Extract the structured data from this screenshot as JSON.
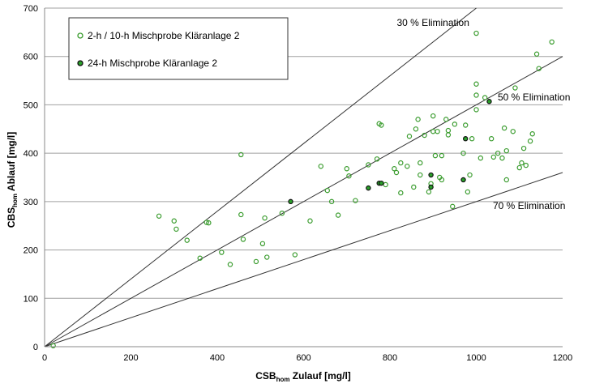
{
  "chart_data": {
    "type": "scatter",
    "xlabel": {
      "main": "CSB",
      "sub": "hom",
      "rest": " Zulauf [mg/l]"
    },
    "ylabel": {
      "main": "CBS",
      "sub": "hom",
      "rest": " Ablauf [mg/l]"
    },
    "xlim": [
      0,
      1200
    ],
    "ylim": [
      0,
      700
    ],
    "xticks": [
      "0",
      "200",
      "400",
      "600",
      "800",
      "1000",
      "1200"
    ],
    "yticks": [
      "0",
      "100",
      "200",
      "300",
      "400",
      "500",
      "600",
      "700"
    ],
    "grid": "horizontal",
    "legend_position": "top-left",
    "series": [
      {
        "name": "2-h / 10-h Mischprobe Kläranlage 2",
        "marker": "open-circle",
        "color": "#3a9c2e",
        "points": [
          [
            20,
            2
          ],
          [
            265,
            270
          ],
          [
            300,
            260
          ],
          [
            305,
            243
          ],
          [
            330,
            220
          ],
          [
            360,
            183
          ],
          [
            375,
            257
          ],
          [
            380,
            256
          ],
          [
            410,
            195
          ],
          [
            430,
            170
          ],
          [
            455,
            397
          ],
          [
            455,
            273
          ],
          [
            460,
            222
          ],
          [
            490,
            176
          ],
          [
            505,
            213
          ],
          [
            510,
            266
          ],
          [
            515,
            185
          ],
          [
            550,
            276
          ],
          [
            580,
            190
          ],
          [
            615,
            260
          ],
          [
            640,
            373
          ],
          [
            655,
            323
          ],
          [
            665,
            300
          ],
          [
            680,
            272
          ],
          [
            700,
            368
          ],
          [
            705,
            353
          ],
          [
            720,
            302
          ],
          [
            750,
            376
          ],
          [
            770,
            388
          ],
          [
            775,
            461
          ],
          [
            780,
            458
          ],
          [
            790,
            335
          ],
          [
            810,
            368
          ],
          [
            815,
            360
          ],
          [
            825,
            318
          ],
          [
            825,
            380
          ],
          [
            840,
            373
          ],
          [
            845,
            435
          ],
          [
            855,
            330
          ],
          [
            860,
            450
          ],
          [
            865,
            470
          ],
          [
            870,
            380
          ],
          [
            870,
            355
          ],
          [
            880,
            437
          ],
          [
            890,
            320
          ],
          [
            895,
            337
          ],
          [
            900,
            477
          ],
          [
            900,
            445
          ],
          [
            905,
            395
          ],
          [
            910,
            445
          ],
          [
            915,
            350
          ],
          [
            920,
            395
          ],
          [
            920,
            345
          ],
          [
            930,
            470
          ],
          [
            935,
            447
          ],
          [
            935,
            438
          ],
          [
            945,
            290
          ],
          [
            950,
            460
          ],
          [
            970,
            400
          ],
          [
            975,
            458
          ],
          [
            980,
            320
          ],
          [
            985,
            355
          ],
          [
            990,
            430
          ],
          [
            1000,
            648
          ],
          [
            1000,
            543
          ],
          [
            1000,
            520
          ],
          [
            1000,
            490
          ],
          [
            1010,
            390
          ],
          [
            1020,
            515
          ],
          [
            1035,
            430
          ],
          [
            1040,
            392
          ],
          [
            1050,
            400
          ],
          [
            1060,
            390
          ],
          [
            1065,
            452
          ],
          [
            1070,
            405
          ],
          [
            1070,
            345
          ],
          [
            1085,
            445
          ],
          [
            1090,
            535
          ],
          [
            1100,
            370
          ],
          [
            1105,
            380
          ],
          [
            1110,
            410
          ],
          [
            1115,
            375
          ],
          [
            1125,
            425
          ],
          [
            1130,
            440
          ],
          [
            1140,
            605
          ],
          [
            1145,
            575
          ],
          [
            1175,
            630
          ]
        ]
      },
      {
        "name": "24-h Mischprobe Kläranlage 2",
        "marker": "filled-circle",
        "color": "#1f7a1f",
        "points": [
          [
            570,
            300
          ],
          [
            750,
            328
          ],
          [
            775,
            338
          ],
          [
            780,
            338
          ],
          [
            895,
            330
          ],
          [
            895,
            355
          ],
          [
            970,
            345
          ],
          [
            975,
            430
          ],
          [
            1030,
            507
          ]
        ]
      }
    ],
    "reference_lines": [
      {
        "label": "30 % Elimination",
        "slope": 0.7
      },
      {
        "label": "50 % Elimination",
        "slope": 0.5
      },
      {
        "label": "70 % Elimination",
        "slope": 0.3
      }
    ]
  }
}
